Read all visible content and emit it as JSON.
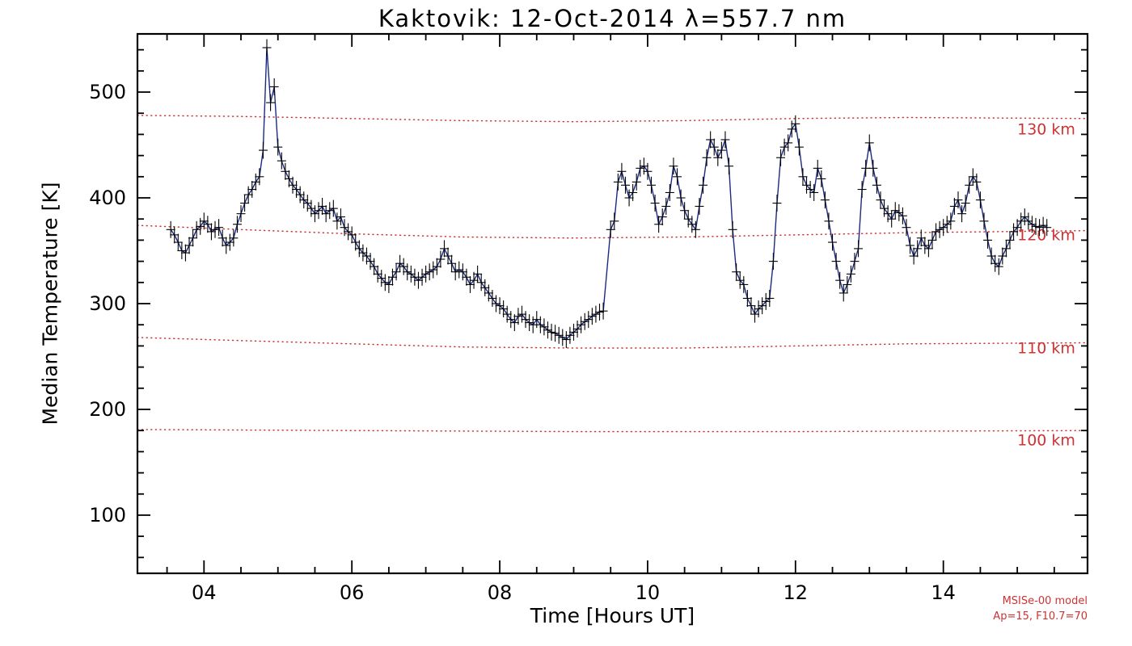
{
  "annotations": {
    "model_line1": "MSISe-00 model",
    "model_line2": "Ap=15, F10.7=70",
    "annotation_color": "#cc3333"
  },
  "chart_data": {
    "type": "line",
    "title": "Kaktovik: 12-Oct-2014 λ=557.7 nm",
    "xlabel": "Time [Hours UT]",
    "ylabel": "Median Temperature [K]",
    "xlim": [
      3.1,
      15.95
    ],
    "ylim": [
      45,
      555
    ],
    "grid": false,
    "legend": null,
    "x_ticks": [
      {
        "v": 4,
        "label": "04"
      },
      {
        "v": 6,
        "label": "06"
      },
      {
        "v": 8,
        "label": "08"
      },
      {
        "v": 10,
        "label": "10"
      },
      {
        "v": 12,
        "label": "12"
      },
      {
        "v": 14,
        "label": "14"
      }
    ],
    "x_minor_step": 0.5,
    "y_ticks": [
      {
        "v": 100,
        "label": "100"
      },
      {
        "v": 200,
        "label": "200"
      },
      {
        "v": 300,
        "label": "300"
      },
      {
        "v": 400,
        "label": "400"
      },
      {
        "v": 500,
        "label": "500"
      }
    ],
    "y_minor_step": 20,
    "model_color": "#cc3333",
    "model_lines": [
      {
        "label": "130 km",
        "label_x": 15.0,
        "label_y": 460,
        "points": [
          [
            3.1,
            478
          ],
          [
            4.5,
            477
          ],
          [
            6,
            475
          ],
          [
            7.5,
            473
          ],
          [
            9,
            472
          ],
          [
            10.5,
            473
          ],
          [
            12,
            475
          ],
          [
            13.5,
            476
          ],
          [
            15.95,
            475
          ]
        ]
      },
      {
        "label": "120 km",
        "label_x": 15.0,
        "label_y": 360,
        "points": [
          [
            3.1,
            374
          ],
          [
            4.5,
            370
          ],
          [
            6,
            366
          ],
          [
            7.5,
            363
          ],
          [
            9,
            362
          ],
          [
            10.5,
            363
          ],
          [
            12,
            365
          ],
          [
            13.5,
            367
          ],
          [
            15.95,
            369
          ]
        ]
      },
      {
        "label": "110 km",
        "label_x": 15.0,
        "label_y": 253,
        "points": [
          [
            3.1,
            268
          ],
          [
            4.5,
            265
          ],
          [
            6,
            262
          ],
          [
            7.5,
            259
          ],
          [
            9,
            258
          ],
          [
            10.5,
            258
          ],
          [
            12,
            260
          ],
          [
            13.5,
            262
          ],
          [
            15.95,
            263
          ]
        ]
      },
      {
        "label": "100 km",
        "label_x": 15.0,
        "label_y": 166,
        "points": [
          [
            3.1,
            181
          ],
          [
            6,
            180
          ],
          [
            9,
            179
          ],
          [
            12,
            179
          ],
          [
            15.95,
            180
          ]
        ]
      }
    ],
    "series": [
      {
        "name": "median-temperature",
        "color": "#1b2a80",
        "marker_color": "#000000",
        "marker": "error-bar-cross",
        "yerr": 8,
        "xerr": 0.06,
        "x": [
          3.55,
          3.6,
          3.65,
          3.7,
          3.75,
          3.8,
          3.85,
          3.9,
          3.95,
          4.0,
          4.05,
          4.1,
          4.15,
          4.2,
          4.25,
          4.3,
          4.35,
          4.4,
          4.45,
          4.5,
          4.55,
          4.6,
          4.65,
          4.7,
          4.75,
          4.8,
          4.85,
          4.9,
          4.95,
          5.0,
          5.05,
          5.1,
          5.15,
          5.2,
          5.25,
          5.3,
          5.35,
          5.4,
          5.45,
          5.5,
          5.55,
          5.6,
          5.65,
          5.7,
          5.75,
          5.8,
          5.85,
          5.9,
          5.95,
          6.0,
          6.05,
          6.1,
          6.15,
          6.2,
          6.25,
          6.3,
          6.35,
          6.4,
          6.45,
          6.5,
          6.55,
          6.6,
          6.65,
          6.7,
          6.75,
          6.8,
          6.85,
          6.9,
          6.95,
          7.0,
          7.05,
          7.1,
          7.15,
          7.2,
          7.25,
          7.3,
          7.35,
          7.4,
          7.45,
          7.5,
          7.55,
          7.6,
          7.65,
          7.7,
          7.75,
          7.8,
          7.85,
          7.9,
          7.95,
          8.0,
          8.05,
          8.1,
          8.15,
          8.2,
          8.25,
          8.3,
          8.35,
          8.4,
          8.45,
          8.5,
          8.55,
          8.6,
          8.65,
          8.7,
          8.75,
          8.8,
          8.85,
          8.9,
          8.95,
          9.0,
          9.05,
          9.1,
          9.15,
          9.2,
          9.25,
          9.3,
          9.35,
          9.4,
          9.5,
          9.55,
          9.6,
          9.65,
          9.7,
          9.75,
          9.8,
          9.85,
          9.9,
          9.95,
          10.0,
          10.05,
          10.1,
          10.15,
          10.2,
          10.25,
          10.3,
          10.35,
          10.4,
          10.45,
          10.5,
          10.55,
          10.6,
          10.65,
          10.7,
          10.75,
          10.8,
          10.85,
          10.9,
          10.95,
          11.0,
          11.05,
          11.1,
          11.15,
          11.2,
          11.25,
          11.3,
          11.35,
          11.4,
          11.45,
          11.5,
          11.55,
          11.6,
          11.65,
          11.7,
          11.75,
          11.8,
          11.85,
          11.9,
          11.95,
          12.0,
          12.05,
          12.1,
          12.15,
          12.2,
          12.25,
          12.3,
          12.35,
          12.4,
          12.45,
          12.5,
          12.55,
          12.6,
          12.65,
          12.7,
          12.75,
          12.8,
          12.85,
          12.9,
          12.95,
          13.0,
          13.05,
          13.1,
          13.15,
          13.2,
          13.25,
          13.3,
          13.35,
          13.4,
          13.45,
          13.5,
          13.55,
          13.6,
          13.65,
          13.7,
          13.75,
          13.8,
          13.85,
          13.9,
          13.95,
          14.0,
          14.05,
          14.1,
          14.15,
          14.2,
          14.25,
          14.3,
          14.35,
          14.4,
          14.45,
          14.5,
          14.55,
          14.6,
          14.65,
          14.7,
          14.75,
          14.8,
          14.85,
          14.9,
          14.95,
          15.0,
          15.05,
          15.1,
          15.15,
          15.2,
          15.25,
          15.3,
          15.35,
          15.4
        ],
        "y": [
          370,
          365,
          358,
          350,
          348,
          355,
          362,
          370,
          373,
          378,
          375,
          368,
          370,
          372,
          362,
          355,
          358,
          362,
          375,
          385,
          395,
          403,
          408,
          415,
          420,
          445,
          542,
          490,
          505,
          448,
          435,
          425,
          418,
          412,
          408,
          403,
          398,
          395,
          390,
          385,
          388,
          392,
          385,
          388,
          390,
          378,
          382,
          372,
          368,
          365,
          358,
          352,
          348,
          345,
          340,
          335,
          328,
          324,
          320,
          318,
          325,
          330,
          338,
          335,
          330,
          328,
          325,
          322,
          325,
          328,
          330,
          332,
          335,
          342,
          352,
          345,
          338,
          330,
          332,
          330,
          325,
          318,
          322,
          328,
          320,
          315,
          310,
          305,
          300,
          298,
          295,
          290,
          285,
          282,
          288,
          290,
          285,
          282,
          280,
          285,
          280,
          278,
          275,
          273,
          272,
          270,
          268,
          266,
          270,
          273,
          276,
          280,
          283,
          285,
          288,
          290,
          292,
          293,
          370,
          378,
          415,
          425,
          412,
          400,
          405,
          415,
          428,
          430,
          425,
          412,
          395,
          375,
          382,
          392,
          405,
          430,
          420,
          400,
          388,
          380,
          375,
          370,
          392,
          412,
          438,
          455,
          448,
          438,
          445,
          455,
          430,
          370,
          330,
          322,
          318,
          305,
          298,
          290,
          295,
          298,
          302,
          305,
          340,
          395,
          438,
          448,
          452,
          465,
          470,
          448,
          420,
          412,
          408,
          405,
          428,
          418,
          398,
          378,
          358,
          340,
          322,
          310,
          318,
          328,
          340,
          352,
          408,
          428,
          452,
          428,
          412,
          398,
          390,
          385,
          380,
          388,
          386,
          383,
          372,
          355,
          345,
          352,
          362,
          355,
          352,
          360,
          368,
          370,
          372,
          375,
          378,
          392,
          398,
          385,
          395,
          412,
          420,
          415,
          398,
          378,
          360,
          345,
          338,
          335,
          345,
          352,
          360,
          368,
          372,
          378,
          382,
          378,
          375,
          373,
          372,
          374,
          372
        ]
      }
    ]
  }
}
